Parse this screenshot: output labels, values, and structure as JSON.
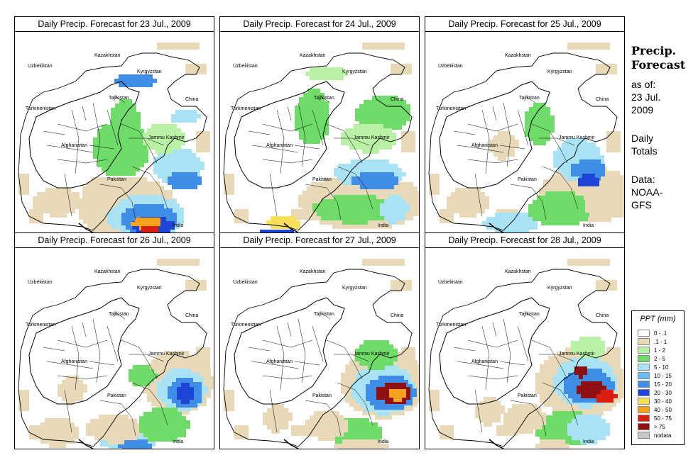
{
  "panels": [
    {
      "title": "Daily Precip. Forecast for  23 Jul., 2009"
    },
    {
      "title": "Daily Precip. Forecast for  24 Jul., 2009"
    },
    {
      "title": "Daily Precip. Forecast for  25 Jul., 2009"
    },
    {
      "title": "Daily Precip. Forecast for  26 Jul., 2009"
    },
    {
      "title": "Daily Precip. Forecast for  27 Jul., 2009"
    },
    {
      "title": "Daily Precip. Forecast for  28 Jul., 2009"
    }
  ],
  "map_labels": {
    "kazakhstan": "Kazakhstan",
    "uzbekistan": "Uzbekistan",
    "kyrgyzstan": "Kyrgyzstan",
    "tajikistan": "Tajikistan",
    "turkmenistan": "Turkmenistan",
    "china": "China",
    "afghanistan": "Afghanistan",
    "jammu_kashmir": "Jammu Kashmir",
    "pakistan": "Pakistan",
    "india": "India"
  },
  "sidebar": {
    "title_line1": "Precip.",
    "title_line2": "Forecast",
    "asof_line1": "as of:",
    "asof_line2": "23 Jul.",
    "asof_line3": "2009",
    "totals_line1": "Daily",
    "totals_line2": "Totals",
    "source_line1": "Data:",
    "source_line2": "NOAA-",
    "source_line3": "GFS"
  },
  "legend": {
    "title": "PPT (mm)",
    "items": [
      {
        "label": "0 - .1",
        "color": "#ffffff"
      },
      {
        "label": ".1 - 1",
        "color": "#e8d9b8"
      },
      {
        "label": "1 - 2",
        "color": "#b9f2a6"
      },
      {
        "label": "2 - 5",
        "color": "#6fdc6a"
      },
      {
        "label": "5 - 10",
        "color": "#a9e2f5"
      },
      {
        "label": "10 - 15",
        "color": "#6bbcf0"
      },
      {
        "label": "15 - 20",
        "color": "#3f8de6"
      },
      {
        "label": "20 - 30",
        "color": "#1f45d6"
      },
      {
        "label": "30 - 40",
        "color": "#f8e05a"
      },
      {
        "label": "40 - 50",
        "color": "#f6a21d"
      },
      {
        "label": "50 - 75",
        "color": "#d81f10"
      },
      {
        "label": "> 75",
        "color": "#8f1010"
      },
      {
        "label": "nodata",
        "color": "#c8c8c8"
      }
    ]
  }
}
